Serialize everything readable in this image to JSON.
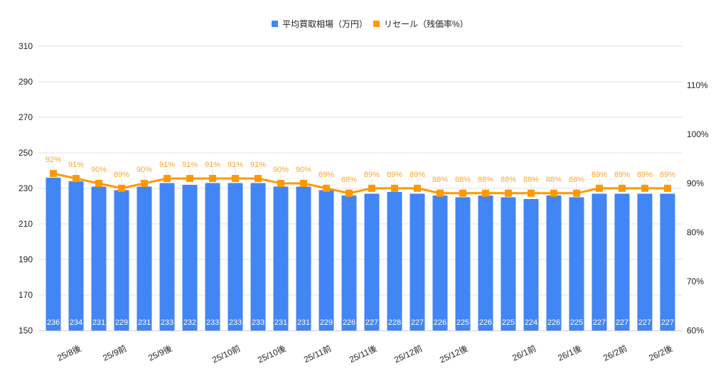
{
  "chart_data": {
    "type": "bar",
    "title": "",
    "xlabel": "",
    "ylabel": "",
    "y2label": "",
    "legend_position": "top",
    "grid": true,
    "ylim": [
      150,
      310
    ],
    "yticks": [
      150,
      170,
      190,
      210,
      230,
      250,
      270,
      290,
      310
    ],
    "y2lim": [
      60,
      110
    ],
    "y2ticks": [
      "60%",
      "70%",
      "80%",
      "90%",
      "100%",
      "110%"
    ],
    "categories": [
      "",
      "25/8後",
      "",
      "25/9前",
      "",
      "25/9後",
      "",
      "",
      "25/10前",
      "",
      "25/10後",
      "",
      "25/11前",
      "",
      "25/11後",
      "",
      "25/12前",
      "",
      "25/12後",
      "",
      "",
      "26/1前",
      "",
      "26/1後",
      "",
      "26/2前",
      "",
      "26/2後"
    ],
    "series": [
      {
        "name": "平均買取相場（万円）",
        "type": "bar",
        "axis": "left",
        "color": "#4285F4",
        "values": [
          236,
          234,
          231,
          229,
          231,
          233,
          232,
          233,
          233,
          233,
          231,
          231,
          229,
          226,
          227,
          228,
          227,
          226,
          225,
          226,
          225,
          224,
          226,
          225,
          227,
          227,
          227,
          227
        ]
      },
      {
        "name": "リセール（残価率%）",
        "type": "line",
        "axis": "right",
        "color": "#FF9900",
        "label_color": "#F7A832",
        "values": [
          92,
          91,
          90,
          89,
          90,
          91,
          91,
          91,
          91,
          91,
          90,
          90,
          89,
          88,
          89,
          89,
          89,
          88,
          88,
          88,
          88,
          88,
          88,
          88,
          89,
          89,
          89,
          89
        ]
      }
    ]
  },
  "legend": {
    "items": [
      {
        "label": "平均買取相場（万円）",
        "color": "#4285F4"
      },
      {
        "label": "リセール（残価率%）",
        "color": "#FF9900"
      }
    ]
  },
  "colors": {
    "bar": "#4285F4",
    "line": "#FF9900",
    "line_label": "#F7A832",
    "grid": "#E0E0E0",
    "baseline": "#CCCCCC",
    "axis_text": "#222222"
  }
}
